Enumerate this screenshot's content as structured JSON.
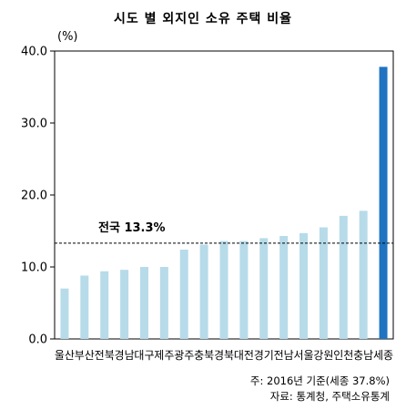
{
  "chart_data": {
    "type": "bar",
    "title": "시도 별 외지인 소유 주택 비율",
    "ylabel": "(%)",
    "ylim": [
      0,
      40
    ],
    "yticks": [
      "0.0",
      "10.0",
      "20.0",
      "30.0",
      "40.0"
    ],
    "categories": [
      "울산",
      "부산",
      "전북",
      "경남",
      "대구",
      "제주",
      "광주",
      "충북",
      "경북",
      "대전",
      "경기",
      "전남",
      "서울",
      "강원",
      "인천",
      "충남",
      "세종"
    ],
    "values": [
      7.0,
      8.8,
      9.4,
      9.6,
      10.0,
      10.0,
      12.4,
      13.1,
      13.6,
      13.6,
      14.0,
      14.3,
      14.7,
      15.5,
      17.1,
      17.8,
      37.8
    ],
    "highlight_index": 16,
    "reference_line": {
      "label": "전국 13.3%",
      "value": 13.3
    },
    "colors": {
      "bar": "#b7dbe9",
      "highlight": "#1f73c0",
      "axis": "#000000"
    },
    "grid": false
  },
  "notes": {
    "note1": "주: 2016년 기준(세종 37.8%)",
    "note2": "자료: 통계청, 주택소유통계"
  }
}
